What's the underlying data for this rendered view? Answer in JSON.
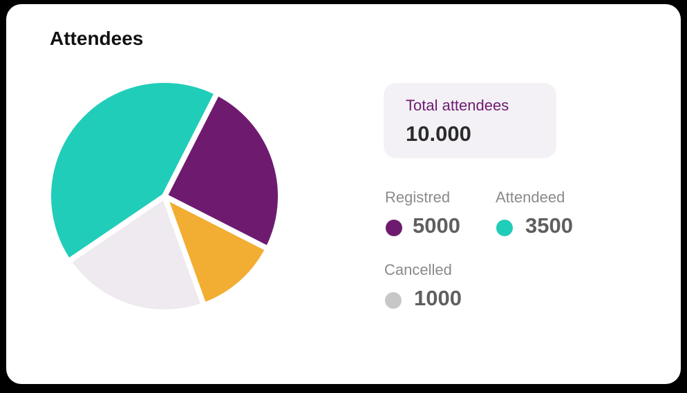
{
  "card": {
    "title": "Attendees"
  },
  "summary": {
    "total_label": "Total attendees",
    "total_value": "10.000"
  },
  "legend": [
    {
      "label": "Registred",
      "value": "5000",
      "color": "#6e1b6f"
    },
    {
      "label": "Attendeed",
      "value": "3500",
      "color": "#20cdb8"
    },
    {
      "label": "Cancelled",
      "value": "1000",
      "color": "#c7c7c7"
    }
  ],
  "chart_data": {
    "type": "pie",
    "title": "Attendees",
    "slices": [
      {
        "value": 25,
        "color": "#6e1b6f"
      },
      {
        "value": 12,
        "color": "#f2ad33"
      },
      {
        "value": 21,
        "color": "#eeeaef"
      },
      {
        "value": 42,
        "color": "#20cdb8"
      }
    ],
    "start_angle_deg": 27,
    "direction": "clockwise"
  }
}
